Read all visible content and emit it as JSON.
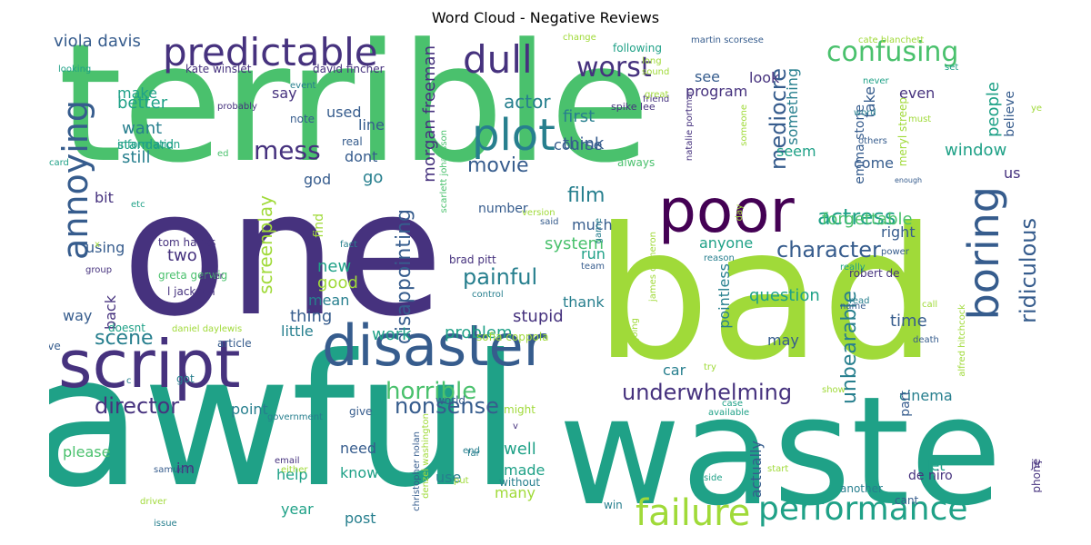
{
  "title": "Word Cloud - Negative Reviews",
  "colors": {
    "palette": [
      "#440154",
      "#46327e",
      "#365c8d",
      "#277f8e",
      "#1fa187",
      "#4ac16d",
      "#a0da39",
      "#fde725"
    ]
  },
  "words": [
    {
      "text": "terrible"
    },
    {
      "text": "one"
    },
    {
      "text": "awful"
    },
    {
      "text": "waste"
    },
    {
      "text": "bad"
    },
    {
      "text": "script"
    },
    {
      "text": "disaster"
    },
    {
      "text": "predictable"
    },
    {
      "text": "poor"
    },
    {
      "text": "plot"
    },
    {
      "text": "dull"
    },
    {
      "text": "boring"
    },
    {
      "text": "annoying"
    },
    {
      "text": "failure"
    },
    {
      "text": "performance"
    },
    {
      "text": "confusing"
    },
    {
      "text": "mess"
    },
    {
      "text": "worst"
    },
    {
      "text": "movie"
    },
    {
      "text": "character"
    },
    {
      "text": "actress"
    },
    {
      "text": "film"
    },
    {
      "text": "painful"
    },
    {
      "text": "director"
    },
    {
      "text": "nonsense"
    },
    {
      "text": "horrible"
    },
    {
      "text": "underwhelming"
    },
    {
      "text": "scene"
    },
    {
      "text": "ridiculous"
    },
    {
      "text": "disappointing"
    },
    {
      "text": "unbearable"
    },
    {
      "text": "screenplay"
    },
    {
      "text": "mediocre"
    },
    {
      "text": "forgettable"
    },
    {
      "text": "actor"
    },
    {
      "text": "viola davis"
    },
    {
      "text": "morgan freeman"
    },
    {
      "text": "emma stone"
    },
    {
      "text": "stupid"
    },
    {
      "text": "pointless"
    },
    {
      "text": "first"
    },
    {
      "text": "think"
    },
    {
      "text": "people"
    },
    {
      "text": "program"
    },
    {
      "text": "something"
    },
    {
      "text": "cinema"
    },
    {
      "text": "window"
    },
    {
      "text": "time"
    },
    {
      "text": "system"
    },
    {
      "text": "question"
    },
    {
      "text": "problem"
    },
    {
      "text": "little"
    },
    {
      "text": "work"
    },
    {
      "text": "thing"
    },
    {
      "text": "mean"
    },
    {
      "text": "good"
    },
    {
      "text": "new"
    },
    {
      "text": "two"
    },
    {
      "text": "back"
    },
    {
      "text": "way"
    },
    {
      "text": "still"
    },
    {
      "text": "want"
    },
    {
      "text": "better"
    },
    {
      "text": "make"
    },
    {
      "text": "say"
    },
    {
      "text": "used"
    },
    {
      "text": "line"
    },
    {
      "text": "dont"
    },
    {
      "text": "go"
    },
    {
      "text": "god"
    },
    {
      "text": "course"
    },
    {
      "text": "seem"
    },
    {
      "text": "come"
    },
    {
      "text": "take"
    },
    {
      "text": "even"
    },
    {
      "text": "believe"
    },
    {
      "text": "see"
    },
    {
      "text": "look"
    },
    {
      "text": "right"
    },
    {
      "text": "anyone"
    },
    {
      "text": "much"
    },
    {
      "text": "find"
    },
    {
      "text": "run"
    },
    {
      "text": "thank"
    },
    {
      "text": "may"
    },
    {
      "text": "car"
    },
    {
      "text": "well"
    },
    {
      "text": "made"
    },
    {
      "text": "know"
    },
    {
      "text": "need"
    },
    {
      "text": "use"
    },
    {
      "text": "help"
    },
    {
      "text": "please"
    },
    {
      "text": "im"
    },
    {
      "text": "many"
    },
    {
      "text": "post"
    },
    {
      "text": "year"
    },
    {
      "text": "let"
    },
    {
      "text": "part"
    },
    {
      "text": "actually"
    },
    {
      "text": "us"
    },
    {
      "text": "bit"
    },
    {
      "text": "using"
    },
    {
      "text": "point"
    },
    {
      "text": "de niro"
    },
    {
      "text": "kate winslet"
    },
    {
      "text": "david fincher"
    },
    {
      "text": "tom hanks"
    },
    {
      "text": "brad pitt"
    },
    {
      "text": "greta gerwig"
    },
    {
      "text": "l jackson"
    },
    {
      "text": "spike lee"
    },
    {
      "text": "martin scorsese"
    },
    {
      "text": "cate blanchett"
    },
    {
      "text": "natalie portman"
    },
    {
      "text": "meryl streep"
    },
    {
      "text": "robert de"
    },
    {
      "text": "james cameron"
    },
    {
      "text": "scarlett johansson"
    },
    {
      "text": "sofia coppola"
    },
    {
      "text": "daniel daylewis"
    },
    {
      "text": "leonardo dicaprio"
    },
    {
      "text": "christopher nolan"
    },
    {
      "text": "denzel washington"
    },
    {
      "text": "alfred hitchcock"
    },
    {
      "text": "samuel l"
    },
    {
      "text": "number"
    },
    {
      "text": "standard"
    },
    {
      "text": "information"
    },
    {
      "text": "card"
    },
    {
      "text": "probably"
    },
    {
      "text": "note"
    },
    {
      "text": "real"
    },
    {
      "text": "event"
    },
    {
      "text": "looking"
    },
    {
      "text": "following"
    },
    {
      "text": "change"
    },
    {
      "text": "long"
    },
    {
      "text": "sound"
    },
    {
      "text": "friend"
    },
    {
      "text": "always"
    },
    {
      "text": "great"
    },
    {
      "text": "someone"
    },
    {
      "text": "never"
    },
    {
      "text": "set"
    },
    {
      "text": "ye"
    },
    {
      "text": "word"
    },
    {
      "text": "must"
    },
    {
      "text": "others"
    },
    {
      "text": "enough"
    },
    {
      "text": "etc"
    },
    {
      "text": "ed"
    },
    {
      "text": "x"
    },
    {
      "text": "group"
    },
    {
      "text": "order"
    },
    {
      "text": "fact"
    },
    {
      "text": "said"
    },
    {
      "text": "version"
    },
    {
      "text": "game"
    },
    {
      "text": "team"
    },
    {
      "text": "control"
    },
    {
      "text": "reason"
    },
    {
      "text": "power"
    },
    {
      "text": "really"
    },
    {
      "text": "read"
    },
    {
      "text": "name"
    },
    {
      "text": "day"
    },
    {
      "text": "call"
    },
    {
      "text": "going"
    },
    {
      "text": "death"
    },
    {
      "text": "article"
    },
    {
      "text": "doesnt"
    },
    {
      "text": "ive"
    },
    {
      "text": "got"
    },
    {
      "text": "c"
    },
    {
      "text": "give"
    },
    {
      "text": "might"
    },
    {
      "text": "v"
    },
    {
      "text": "world"
    },
    {
      "text": "government"
    },
    {
      "text": "email"
    },
    {
      "text": "either"
    },
    {
      "text": "far"
    },
    {
      "text": "end"
    },
    {
      "text": "put"
    },
    {
      "text": "without"
    },
    {
      "text": "driver"
    },
    {
      "text": "issue"
    },
    {
      "text": "win"
    },
    {
      "text": "available"
    },
    {
      "text": "case"
    },
    {
      "text": "file"
    },
    {
      "text": "try"
    },
    {
      "text": "side"
    },
    {
      "text": "start"
    },
    {
      "text": "another"
    },
    {
      "text": "cant"
    },
    {
      "text": "phone"
    },
    {
      "text": "jim"
    },
    {
      "text": "show"
    }
  ]
}
